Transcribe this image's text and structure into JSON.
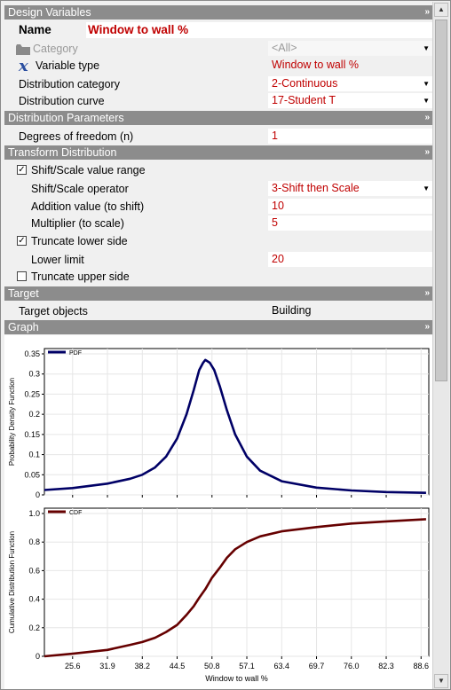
{
  "sections": {
    "design_variables": "Design Variables",
    "distribution_parameters": "Distribution Parameters",
    "transform_distribution": "Transform Distribution",
    "target": "Target",
    "graph": "Graph"
  },
  "chevron": "»",
  "name": {
    "label": "Name",
    "value": "Window to wall %"
  },
  "category": {
    "label": "Category",
    "value": "<All>",
    "icon": "folder-icon"
  },
  "variable_type": {
    "label": "Variable type",
    "value": "Window to wall %",
    "icon": "x-variable-icon"
  },
  "distribution_category": {
    "label": "Distribution category",
    "value": "2-Continuous"
  },
  "distribution_curve": {
    "label": "Distribution curve",
    "value": "17-Student T"
  },
  "degrees_of_freedom": {
    "label": "Degrees of freedom (n)",
    "value": "1"
  },
  "shift_scale_range": {
    "label": "Shift/Scale value range",
    "checked": true
  },
  "shift_scale_operator": {
    "label": "Shift/Scale operator",
    "value": "3-Shift then Scale"
  },
  "addition_value": {
    "label": "Addition value (to shift)",
    "value": "10"
  },
  "multiplier": {
    "label": "Multiplier (to scale)",
    "value": "5"
  },
  "truncate_lower": {
    "label": "Truncate lower side",
    "checked": true
  },
  "lower_limit": {
    "label": "Lower limit",
    "value": "20"
  },
  "truncate_upper": {
    "label": "Truncate upper side",
    "checked": false
  },
  "target_objects": {
    "label": "Target objects",
    "value": "Building"
  },
  "colors": {
    "accent_red": "#c00000",
    "pdf_line": "#000066",
    "cdf_line": "#660000",
    "section_header": "#8c8c8c"
  },
  "chart_data": [
    {
      "type": "line",
      "legend": "PDF",
      "ylabel": "Probability Density Function",
      "xlabel": "",
      "ylim": [
        0,
        0.35
      ],
      "yticks": [
        "0",
        "0.05",
        "0.1",
        "0.15",
        "0.2",
        "0.25",
        "0.3",
        "0.35"
      ],
      "x": [
        20.5,
        25.6,
        31.9,
        36,
        38.2,
        40.5,
        42.5,
        44.5,
        46.2,
        47.5,
        48.5,
        49.2,
        49.6,
        50.4,
        51.2,
        52.2,
        53.5,
        55,
        57.1,
        59.5,
        63.4,
        69.7,
        76.0,
        82.3,
        89.5
      ],
      "y": [
        0.012,
        0.017,
        0.028,
        0.04,
        0.05,
        0.068,
        0.095,
        0.14,
        0.2,
        0.26,
        0.31,
        0.328,
        0.335,
        0.328,
        0.31,
        0.27,
        0.21,
        0.15,
        0.095,
        0.06,
        0.034,
        0.018,
        0.011,
        0.007,
        0.005
      ]
    },
    {
      "type": "line",
      "legend": "CDF",
      "ylabel": "Cumulative Distribution Function",
      "xlabel": "Window to wall %",
      "ylim": [
        0,
        1.0
      ],
      "yticks": [
        "0",
        "0.2",
        "0.4",
        "0.6",
        "0.8",
        "1.0"
      ],
      "xticks": [
        "25.6",
        "31.9",
        "38.2",
        "44.5",
        "50.8",
        "57.1",
        "63.4",
        "69.7",
        "76.0",
        "82.3",
        "88.6"
      ],
      "xlim": [
        20.5,
        90
      ],
      "x": [
        20.5,
        25.6,
        31.9,
        36,
        38.2,
        40.5,
        42.5,
        44.5,
        46.2,
        47.5,
        48.5,
        49.6,
        50.8,
        52.2,
        53.5,
        55,
        57.1,
        59.5,
        63.4,
        69.7,
        76.0,
        82.3,
        89.5
      ],
      "y": [
        0.0,
        0.018,
        0.045,
        0.08,
        0.1,
        0.13,
        0.17,
        0.22,
        0.29,
        0.35,
        0.41,
        0.47,
        0.55,
        0.62,
        0.69,
        0.75,
        0.8,
        0.84,
        0.875,
        0.905,
        0.93,
        0.945,
        0.96
      ]
    }
  ]
}
